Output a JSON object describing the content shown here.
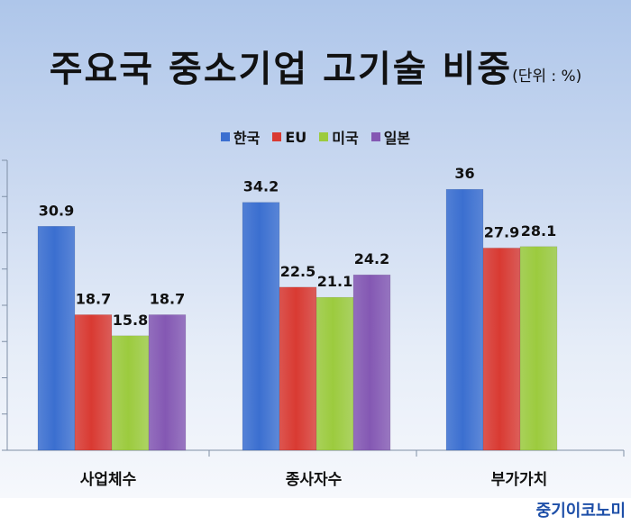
{
  "title": "주요국 중소기업 고기술 비중",
  "unit_label": "(단위 : %)",
  "brand": "중기이코노미",
  "chart_data": {
    "type": "bar",
    "categories": [
      "사업체수",
      "종사자수",
      "부가가치"
    ],
    "series": [
      {
        "name": "한국",
        "color": "#3b6fd0",
        "values": [
          30.9,
          34.2,
          36
        ]
      },
      {
        "name": "EU",
        "color": "#d93a32",
        "values": [
          18.7,
          22.5,
          27.9
        ]
      },
      {
        "name": "미국",
        "color": "#9ccb3e",
        "values": [
          15.8,
          21.1,
          28.1
        ]
      },
      {
        "name": "일본",
        "color": "#8458b3",
        "values": [
          18.7,
          24.2,
          null
        ]
      }
    ],
    "ylim": [
      0,
      40
    ],
    "grid": false,
    "legend_position": "top"
  }
}
